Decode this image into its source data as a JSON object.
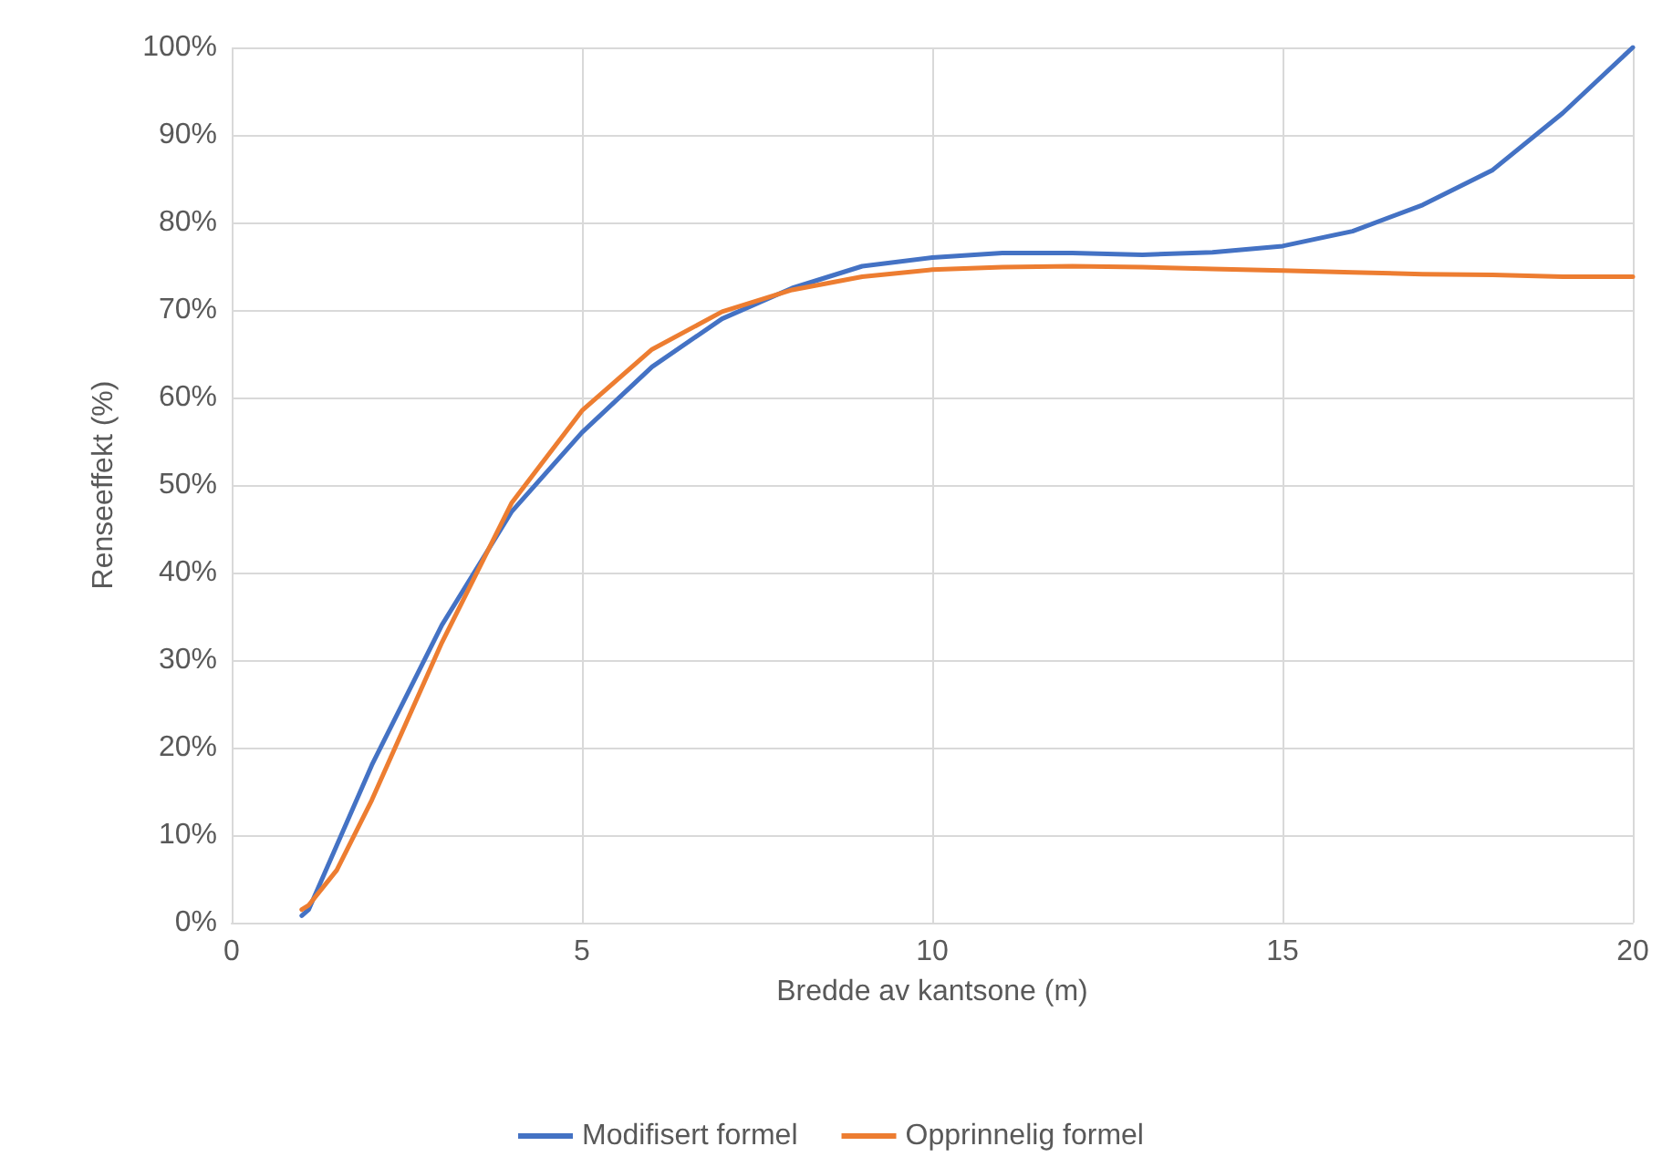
{
  "chart_data": {
    "type": "line",
    "xlabel": "Bredde av kantsone (m)",
    "ylabel": "Renseeffekt (%)",
    "xlim": [
      0,
      20
    ],
    "xticks": [
      0,
      5,
      10,
      15,
      20
    ],
    "ylim": [
      0,
      100
    ],
    "yticks": [
      {
        "value": 0,
        "label": "0%"
      },
      {
        "value": 10,
        "label": "10%"
      },
      {
        "value": 20,
        "label": "20%"
      },
      {
        "value": 30,
        "label": "30%"
      },
      {
        "value": 40,
        "label": "40%"
      },
      {
        "value": 50,
        "label": "50%"
      },
      {
        "value": 60,
        "label": "60%"
      },
      {
        "value": 70,
        "label": "70%"
      },
      {
        "value": 80,
        "label": "80%"
      },
      {
        "value": 90,
        "label": "90%"
      },
      {
        "value": 100,
        "label": "100%"
      }
    ],
    "grid": true,
    "legend": "bottom",
    "marker": "none",
    "line_style": "solid",
    "series": [
      {
        "name": "Modifisert formel",
        "color": "#4472c4",
        "x": [
          1,
          1.1,
          2,
          3,
          4,
          5,
          6,
          7,
          8,
          9,
          10,
          11,
          12,
          13,
          14,
          15,
          16,
          17,
          18,
          19,
          20
        ],
        "values": [
          0.8,
          1.5,
          18,
          34,
          47,
          56,
          63.5,
          69,
          72.5,
          75,
          76,
          76.5,
          76.5,
          76.3,
          76.6,
          77.3,
          79,
          82,
          86,
          92.5,
          100
        ]
      },
      {
        "name": "Opprinnelig formel",
        "color": "#ed7d31",
        "x": [
          1,
          1.1,
          1.5,
          2,
          3,
          4,
          5,
          6,
          7,
          8,
          9,
          10,
          11,
          12,
          13,
          14,
          15,
          16,
          17,
          18,
          19,
          20
        ],
        "values": [
          1.5,
          2,
          6,
          14,
          32,
          48,
          58.5,
          65.5,
          69.8,
          72.3,
          73.8,
          74.6,
          74.9,
          75,
          74.9,
          74.7,
          74.5,
          74.3,
          74.1,
          74,
          73.8,
          73.8
        ]
      }
    ]
  }
}
